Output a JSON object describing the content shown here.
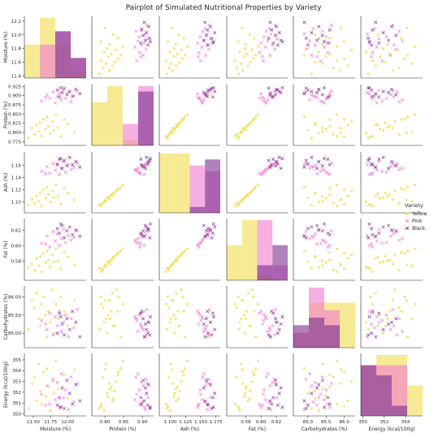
{
  "chart_data": {
    "type": "scatter",
    "title": "Pairplot of Simulated Nutritional Properties by Variety",
    "legend": {
      "title": "Variety",
      "placement": "right",
      "entries": [
        {
          "name": "Yellow",
          "color": "#f2dc4c",
          "marker": "circle"
        },
        {
          "name": "Pink",
          "color": "#f07ad0",
          "marker": "x"
        },
        {
          "name": "Black",
          "color": "#7a2f90",
          "marker": "x"
        }
      ]
    },
    "diagonal": "histogram",
    "variables": [
      {
        "name": "Moisture (%)",
        "lim": [
          11.37,
          12.27
        ],
        "ticks": [
          11.4,
          11.6,
          11.8,
          12.0,
          12.2
        ],
        "xticks": [
          11.5,
          11.75,
          12.0
        ],
        "xticklabels": [
          "11.50",
          "11.75",
          "12.00"
        ]
      },
      {
        "name": "Protein (%)",
        "lim": [
          0.765,
          0.93
        ],
        "ticks": [
          0.775,
          0.8,
          0.825,
          0.85,
          0.875,
          0.9,
          0.925
        ],
        "xticks": [
          0.8,
          0.85,
          0.9
        ],
        "xticklabels": [
          "0.80",
          "0.85",
          "0.90"
        ]
      },
      {
        "name": "Ash (%)",
        "lim": [
          1.082,
          1.182
        ],
        "ticks": [
          1.1,
          1.12,
          1.14,
          1.16
        ],
        "xticks": [
          1.1,
          1.125,
          1.15,
          1.175
        ],
        "xticklabels": [
          "1.100",
          "1.125",
          "1.150",
          "1.175"
        ]
      },
      {
        "name": "Fat (%)",
        "lim": [
          0.555,
          0.635
        ],
        "ticks": [
          0.58,
          0.6,
          0.62
        ],
        "xticks": [
          0.58,
          0.6,
          0.62
        ],
        "xticklabels": [
          "0.58",
          "0.60",
          "0.62"
        ]
      },
      {
        "name": "Carbohydrates (%)",
        "lim": [
          84.6,
          86.3
        ],
        "ticks": [
          85.0,
          85.5,
          86.0
        ],
        "xticks": [
          85.0,
          85.5,
          86.0
        ],
        "xticklabels": [
          "85.0",
          "85.5",
          "86.0"
        ]
      },
      {
        "name": "Energy (kcal/100g)",
        "lim": [
          349.8,
          355.6
        ],
        "ticks": [
          350,
          351,
          352,
          353,
          354,
          355
        ],
        "xticks": [
          350,
          352,
          354
        ],
        "xticklabels": [
          "350",
          "352",
          "354"
        ]
      }
    ],
    "series": [
      {
        "name": "Yellow",
        "points": [
          [
            11.43,
            0.785,
            1.095,
            0.571,
            85.1,
            350.5
          ],
          [
            11.48,
            0.812,
            1.104,
            0.576,
            85.9,
            352.8
          ],
          [
            11.52,
            0.795,
            1.098,
            0.568,
            85.7,
            353.4
          ],
          [
            11.55,
            0.82,
            1.11,
            0.583,
            86.1,
            351.2
          ],
          [
            11.58,
            0.803,
            1.101,
            0.574,
            85.4,
            354.6
          ],
          [
            11.6,
            0.826,
            1.115,
            0.586,
            85.2,
            352.1
          ],
          [
            11.62,
            0.79,
            1.093,
            0.566,
            85.8,
            350.9
          ],
          [
            11.65,
            0.836,
            1.12,
            0.59,
            86.0,
            353.9
          ],
          [
            11.68,
            0.809,
            1.106,
            0.578,
            85.5,
            351.6
          ],
          [
            11.7,
            0.842,
            1.124,
            0.593,
            84.9,
            354.2
          ],
          [
            11.72,
            0.817,
            1.112,
            0.581,
            85.6,
            352.5
          ],
          [
            11.75,
            0.798,
            1.1,
            0.572,
            85.3,
            350.3
          ],
          [
            11.78,
            0.83,
            1.118,
            0.588,
            86.2,
            353.0
          ],
          [
            11.8,
            0.806,
            1.107,
            0.579,
            85.0,
            351.9
          ],
          [
            11.83,
            0.848,
            1.128,
            0.596,
            85.8,
            354.9
          ],
          [
            11.86,
            0.813,
            1.109,
            0.58,
            85.4,
            352.3
          ],
          [
            11.9,
            0.789,
            1.096,
            0.57,
            86.0,
            350.7
          ],
          [
            11.95,
            0.835,
            1.122,
            0.591,
            85.6,
            353.6
          ],
          [
            12.0,
            0.822,
            1.114,
            0.585,
            85.2,
            351.4
          ],
          [
            12.1,
            0.8,
            1.103,
            0.575,
            85.9,
            354.1
          ]
        ]
      },
      {
        "name": "Pink",
        "points": [
          [
            11.62,
            0.885,
            1.15,
            0.603,
            85.35,
            351.8
          ],
          [
            11.7,
            0.902,
            1.158,
            0.612,
            85.1,
            352.6
          ],
          [
            11.74,
            0.893,
            1.147,
            0.598,
            85.55,
            350.9
          ],
          [
            11.79,
            0.91,
            1.163,
            0.618,
            84.95,
            353.2
          ],
          [
            11.82,
            0.88,
            1.152,
            0.606,
            85.45,
            351.3
          ],
          [
            11.85,
            0.897,
            1.16,
            0.615,
            85.2,
            352.9
          ],
          [
            11.88,
            0.905,
            1.145,
            0.6,
            85.6,
            350.6
          ],
          [
            11.91,
            0.888,
            1.155,
            0.609,
            85.05,
            353.7
          ],
          [
            11.94,
            0.915,
            1.166,
            0.621,
            85.3,
            351.5
          ],
          [
            11.97,
            0.892,
            1.149,
            0.604,
            85.5,
            352.2
          ],
          [
            12.01,
            0.908,
            1.161,
            0.613,
            84.9,
            350.4
          ],
          [
            12.05,
            0.883,
            1.153,
            0.607,
            85.4,
            353.4
          ],
          [
            12.09,
            0.899,
            1.157,
            0.611,
            85.15,
            351.1
          ],
          [
            12.14,
            0.912,
            1.164,
            0.619,
            85.65,
            352.8
          ],
          [
            11.68,
            0.895,
            1.146,
            0.602,
            85.25,
            350.8
          ]
        ]
      },
      {
        "name": "Black",
        "points": [
          [
            11.85,
            0.915,
            1.162,
            0.622,
            85.0,
            350.8
          ],
          [
            11.88,
            0.896,
            1.17,
            0.616,
            85.55,
            351.5
          ],
          [
            11.92,
            0.908,
            1.155,
            0.626,
            85.25,
            352.4
          ],
          [
            11.95,
            0.92,
            1.168,
            0.61,
            84.95,
            350.5
          ],
          [
            11.99,
            0.902,
            1.159,
            0.619,
            85.4,
            353.1
          ],
          [
            12.03,
            0.911,
            1.173,
            0.624,
            85.1,
            351.9
          ],
          [
            12.07,
            0.898,
            1.161,
            0.614,
            85.6,
            350.9
          ],
          [
            12.12,
            0.917,
            1.166,
            0.62,
            85.3,
            352.7
          ],
          [
            12.18,
            0.905,
            1.157,
            0.612,
            84.9,
            351.2
          ],
          [
            11.9,
            0.921,
            1.171,
            0.628,
            85.45,
            350.6
          ]
        ]
      }
    ]
  }
}
